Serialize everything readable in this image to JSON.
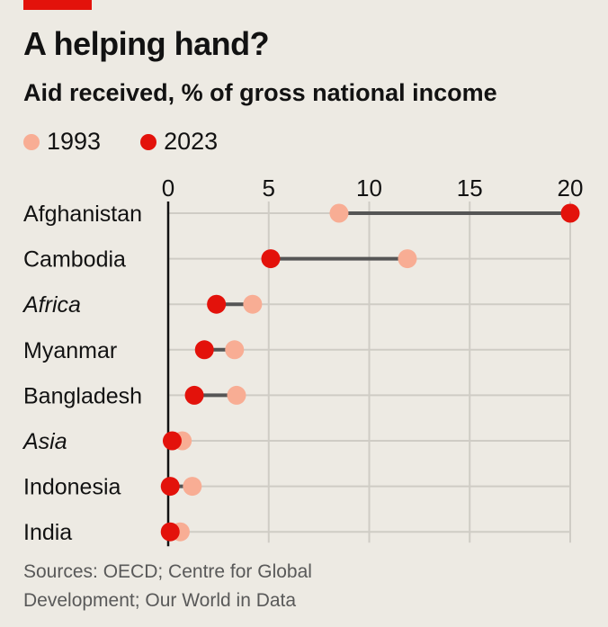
{
  "title": "A helping hand?",
  "subtitle": "Aid received, % of gross national income",
  "legend": [
    {
      "label": "1993",
      "color": "#F8AD94"
    },
    {
      "label": "2023",
      "color": "#E3120B"
    }
  ],
  "source": "Sources: OECD; Centre for Global Development; Our World in Data",
  "colors": {
    "accent": "#E3120B",
    "v1993": "#F8AD94",
    "v2023": "#E3120B",
    "connector": "#555555",
    "grid": "#CFCCC5",
    "background": "#EDEAE3"
  },
  "chart_data": {
    "type": "dot-range",
    "xlim": [
      0,
      20
    ],
    "xticks": [
      "0",
      "5",
      "10",
      "15",
      "20"
    ],
    "grid": true,
    "legend_position": "top-left",
    "categories": [
      {
        "label": "Afghanistan",
        "italic": false
      },
      {
        "label": "Cambodia",
        "italic": false
      },
      {
        "label": "Africa",
        "italic": true
      },
      {
        "label": "Myanmar",
        "italic": false
      },
      {
        "label": "Bangladesh",
        "italic": false
      },
      {
        "label": "Asia",
        "italic": true
      },
      {
        "label": "Indonesia",
        "italic": false
      },
      {
        "label": "India",
        "italic": false
      }
    ],
    "series": [
      {
        "name": "1993",
        "values": [
          8.5,
          11.9,
          4.2,
          3.3,
          3.4,
          0.7,
          1.2,
          0.6
        ]
      },
      {
        "name": "2023",
        "values": [
          20.0,
          5.1,
          2.4,
          1.8,
          1.3,
          0.2,
          0.1,
          0.1
        ]
      }
    ]
  }
}
